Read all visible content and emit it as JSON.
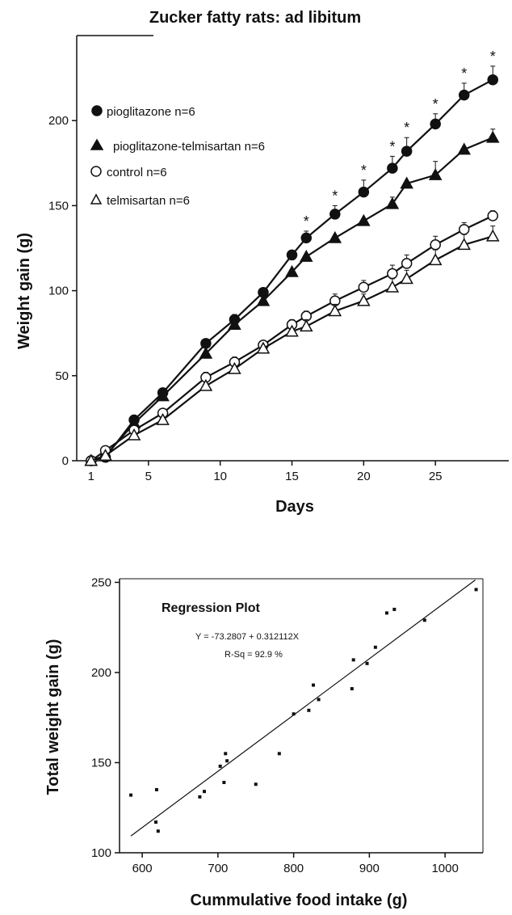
{
  "chart_data": [
    {
      "type": "line",
      "title": "Zucker fatty rats: ad libitum",
      "xlabel": "Days",
      "ylabel": "Weight gain  (g)",
      "xlim": [
        0,
        30
      ],
      "ylim": [
        0,
        250
      ],
      "x_ticks": [
        1,
        5,
        10,
        15,
        20,
        25
      ],
      "y_ticks": [
        0,
        50,
        100,
        150,
        200
      ],
      "grid": false,
      "legend": "top-left",
      "series": [
        {
          "name": "pioglitazone n=6",
          "marker": "filled-circle",
          "x": [
            1,
            2,
            4,
            6,
            9,
            11,
            13,
            15,
            16,
            18,
            20,
            22,
            23,
            25,
            27,
            29
          ],
          "y": [
            0,
            2,
            24,
            40,
            69,
            83,
            99,
            121,
            131,
            145,
            158,
            172,
            182,
            198,
            215,
            224
          ],
          "err": [
            0,
            0,
            0,
            0,
            0,
            3,
            0,
            0,
            4,
            5,
            7,
            7,
            8,
            6,
            7,
            8
          ]
        },
        {
          "name": "pioglitazone-telmisartan n=6",
          "marker": "filled-triangle",
          "x": [
            1,
            2,
            4,
            6,
            9,
            11,
            13,
            15,
            16,
            18,
            20,
            22,
            23,
            25,
            27,
            29
          ],
          "y": [
            0,
            3,
            22,
            38,
            63,
            80,
            94,
            111,
            120,
            131,
            141,
            151,
            163,
            168,
            183,
            190
          ],
          "err": [
            0,
            0,
            0,
            0,
            0,
            0,
            0,
            0,
            0,
            0,
            0,
            4,
            0,
            8,
            0,
            5
          ]
        },
        {
          "name": "control n=6",
          "marker": "open-circle",
          "x": [
            1,
            2,
            4,
            6,
            9,
            11,
            13,
            15,
            16,
            18,
            20,
            22,
            23,
            25,
            27,
            29
          ],
          "y": [
            0,
            6,
            18,
            28,
            49,
            58,
            68,
            80,
            85,
            94,
            102,
            110,
            116,
            127,
            136,
            144
          ],
          "err": [
            0,
            0,
            0,
            0,
            3,
            3,
            0,
            3,
            3,
            4,
            4,
            5,
            5,
            5,
            4,
            3
          ]
        },
        {
          "name": "telmisartan n=6",
          "marker": "open-triangle",
          "x": [
            1,
            2,
            4,
            6,
            9,
            11,
            13,
            15,
            16,
            18,
            20,
            22,
            23,
            25,
            27,
            29
          ],
          "y": [
            0,
            3,
            15,
            24,
            44,
            54,
            66,
            76,
            79,
            88,
            94,
            102,
            107,
            118,
            127,
            132
          ],
          "err": [
            0,
            0,
            0,
            0,
            0,
            0,
            0,
            0,
            4,
            4,
            4,
            5,
            5,
            6,
            6,
            6
          ]
        }
      ],
      "significance": {
        "symbol": "*",
        "x": [
          16,
          18,
          20,
          22,
          23,
          25,
          27,
          29
        ]
      }
    },
    {
      "type": "scatter",
      "title": "Regression Plot",
      "xlabel": "Cummulative food intake (g)",
      "ylabel": "Total weight gain (g)",
      "xlim": [
        570,
        1050
      ],
      "ylim": [
        100,
        252
      ],
      "x_ticks": [
        600,
        700,
        800,
        900,
        1000
      ],
      "y_ticks": [
        100,
        150,
        200,
        250
      ],
      "grid": false,
      "equation": "Y = -73.2807 + 0.312112X",
      "r_squared": "R-Sq = 92.9 %",
      "fit": {
        "intercept": -73.2807,
        "slope": 0.312112,
        "x_range": [
          585,
          1040
        ]
      },
      "points": [
        [
          585,
          132
        ],
        [
          618,
          117
        ],
        [
          619,
          135
        ],
        [
          621,
          112
        ],
        [
          676,
          131
        ],
        [
          682,
          134
        ],
        [
          703,
          148
        ],
        [
          708,
          139
        ],
        [
          710,
          155
        ],
        [
          712,
          151
        ],
        [
          750,
          138
        ],
        [
          781,
          155
        ],
        [
          800,
          177
        ],
        [
          820,
          179
        ],
        [
          826,
          193
        ],
        [
          833,
          185
        ],
        [
          877,
          191
        ],
        [
          879,
          207
        ],
        [
          897,
          205
        ],
        [
          908,
          214
        ],
        [
          923,
          233
        ],
        [
          933,
          235
        ],
        [
          973,
          229
        ],
        [
          1041,
          246
        ]
      ]
    }
  ]
}
